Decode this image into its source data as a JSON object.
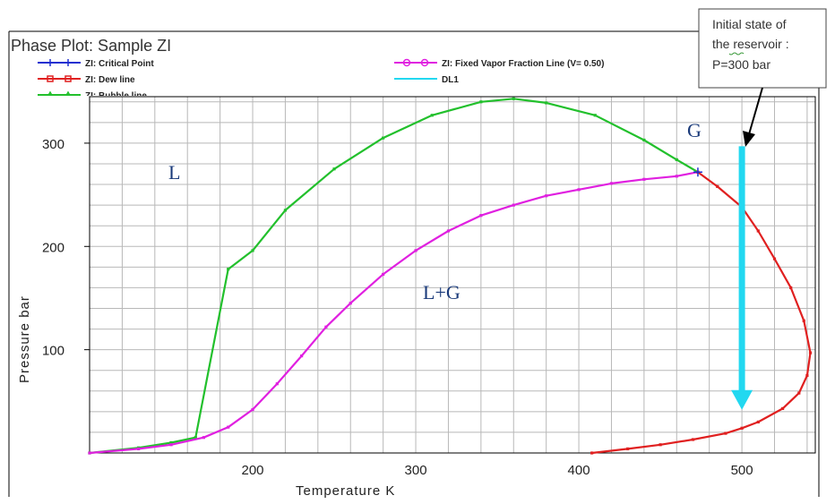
{
  "chart_data": {
    "type": "line",
    "title": "Phase Plot: Sample ZI",
    "xlabel": "Temperature  K",
    "ylabel": "Pressure  bar",
    "xlim": [
      100,
      545
    ],
    "ylim": [
      0,
      345
    ],
    "x_ticks": [
      200,
      300,
      400,
      500
    ],
    "y_ticks": [
      100,
      200,
      300
    ],
    "grid": true,
    "legend": [
      {
        "label": "ZI: Critical Point",
        "color": "#1f2fd0",
        "marker": "plus"
      },
      {
        "label": "ZI: Dew line",
        "color": "#e02020",
        "marker": "square"
      },
      {
        "label": "ZI: Bubble line",
        "color": "#22c02c",
        "marker": "triangle"
      },
      {
        "label": "ZI: Fixed Vapor Fraction Line (V= 0.50)",
        "color": "#e020e0",
        "marker": "circle"
      },
      {
        "label": "DL1",
        "color": "#22d8f0",
        "marker": "none"
      }
    ],
    "series": [
      {
        "name": "ZI: Bubble line",
        "color": "#22c02c",
        "x": [
          100,
          130,
          150,
          165,
          185,
          200,
          220,
          250,
          280,
          310,
          340,
          360,
          380,
          410,
          440,
          460,
          473
        ],
        "y": [
          0,
          5,
          10,
          15,
          178,
          196,
          235,
          275,
          305,
          327,
          340,
          343,
          339,
          327,
          303,
          284,
          272
        ]
      },
      {
        "name": "ZI: Fixed Vapor Fraction Line (V= 0.50)",
        "color": "#e020e0",
        "x": [
          100,
          130,
          150,
          170,
          185,
          200,
          215,
          230,
          245,
          260,
          280,
          300,
          320,
          340,
          360,
          380,
          400,
          420,
          440,
          460,
          473
        ],
        "y": [
          0,
          4,
          8,
          15,
          25,
          42,
          67,
          94,
          122,
          145,
          173,
          196,
          215,
          230,
          240,
          249,
          255,
          261,
          265,
          268,
          272
        ]
      },
      {
        "name": "ZI: Dew line",
        "color": "#e02020",
        "x": [
          473,
          485,
          500,
          510,
          520,
          530,
          538,
          542,
          540,
          535,
          525,
          510,
          500,
          490,
          470,
          450,
          430,
          408
        ],
        "y": [
          272,
          258,
          238,
          215,
          188,
          160,
          128,
          97,
          75,
          58,
          43,
          30,
          24,
          19,
          13,
          8,
          4,
          0
        ]
      }
    ],
    "critical_point": {
      "x": 473,
      "y": 272
    },
    "annotation_arrow": {
      "name": "DL1",
      "x": 500,
      "y_start": 297,
      "y_end": 47
    },
    "region_labels": [
      "L",
      "G",
      "L+G"
    ],
    "callout": [
      "Initial state of",
      "the reservoir :",
      "P=300 bar"
    ]
  }
}
